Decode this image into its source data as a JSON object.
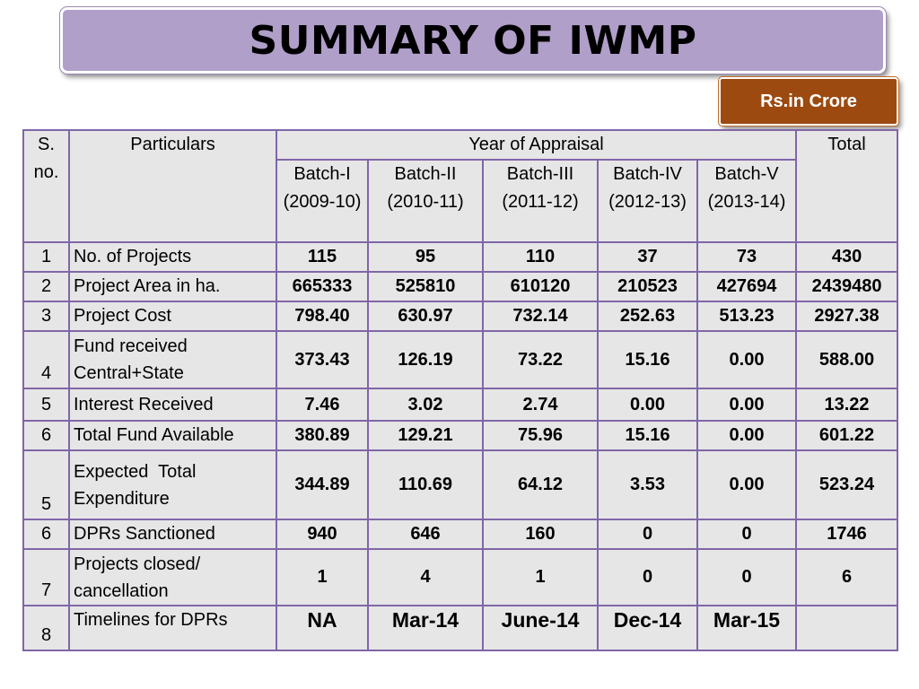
{
  "title": "SUMMARY OF IWMP",
  "unit": "Rs.in Crore",
  "headers": {
    "sno": "S. no.",
    "particulars": "Particulars",
    "year": "Year of Appraisal",
    "total": "Total",
    "batches": [
      {
        "name": "Batch-I",
        "period": "(2009-10)"
      },
      {
        "name": "Batch-II",
        "period": "(2010-11)"
      },
      {
        "name": "Batch-III",
        "period": "(2011-12)"
      },
      {
        "name": "Batch-IV",
        "period": "(2012-13)"
      },
      {
        "name": "Batch-V",
        "period": "(2013-14)"
      }
    ]
  },
  "rows": [
    {
      "sno": "1",
      "particular": "No. of Projects",
      "values": [
        "115",
        "95",
        "110",
        "37",
        "73"
      ],
      "total": "430"
    },
    {
      "sno": "2",
      "particular": "Project Area in ha.",
      "values": [
        "665333",
        "525810",
        "610120",
        "210523",
        "427694"
      ],
      "total": "2439480"
    },
    {
      "sno": "3",
      "particular": "Project Cost",
      "values": [
        "798.40",
        "630.97",
        "732.14",
        "252.63",
        "513.23"
      ],
      "total": "2927.38"
    },
    {
      "sno": "4",
      "particular": "Fund received Central+State",
      "values": [
        "373.43",
        "126.19",
        "73.22",
        "15.16",
        "0.00"
      ],
      "total": "588.00"
    },
    {
      "sno": "5",
      "particular": "Interest Received",
      "values": [
        "7.46",
        "3.02",
        "2.74",
        "0.00",
        "0.00"
      ],
      "total": "13.22"
    },
    {
      "sno": "6",
      "particular": "Total Fund Available",
      "values": [
        "380.89",
        "129.21",
        "75.96",
        "15.16",
        "0.00"
      ],
      "total": "601.22"
    },
    {
      "sno": "5",
      "particular": "Expected  Total Expenditure",
      "values": [
        "344.89",
        "110.69",
        "64.12",
        "3.53",
        "0.00"
      ],
      "total": "523.24"
    },
    {
      "sno": "6",
      "particular": "DPRs Sanctioned",
      "values": [
        "940",
        "646",
        "160",
        "0",
        "0"
      ],
      "total": "1746"
    },
    {
      "sno": "7",
      "particular": "Projects closed/ cancellation",
      "values": [
        "1",
        "4",
        "1",
        "0",
        "0"
      ],
      "total": "6"
    },
    {
      "sno": "8",
      "particular": "Timelines for DPRs",
      "values": [
        "NA",
        "Mar-14",
        "June-14",
        "Dec-14",
        "Mar-15"
      ],
      "total": ""
    }
  ]
}
